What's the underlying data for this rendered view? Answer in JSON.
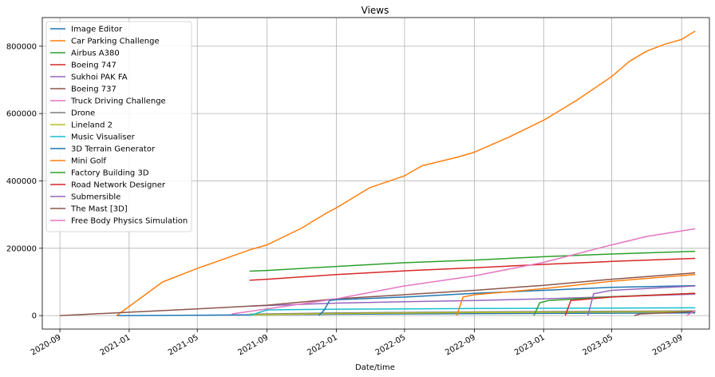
{
  "chart_data": {
    "type": "line",
    "title": "Views",
    "xlabel": "Date/time",
    "ylabel": "",
    "xlim": [
      "2020-08-01",
      "2023-10-20"
    ],
    "ylim": [
      -40000,
      885000
    ],
    "x_ticks": [
      "2020-09",
      "2021-01",
      "2021-05",
      "2021-09",
      "2022-01",
      "2022-05",
      "2022-09",
      "2023-01",
      "2023-05",
      "2023-09"
    ],
    "y_ticks": [
      0,
      200000,
      400000,
      600000,
      800000
    ],
    "grid": true,
    "legend_position": "top-left",
    "series": [
      {
        "name": "Image Editor",
        "color": "#1f77b4",
        "points": [
          [
            "2020-12-10",
            200
          ],
          [
            "2021-06-01",
            1500
          ],
          [
            "2022-01-01",
            4000
          ],
          [
            "2022-09-01",
            6000
          ],
          [
            "2023-09-25",
            8000
          ]
        ]
      },
      {
        "name": "Car Parking Challenge",
        "color": "#ff7f0e",
        "points": [
          [
            "2020-12-10",
            0
          ],
          [
            "2021-03-01",
            100000
          ],
          [
            "2021-05-01",
            140000
          ],
          [
            "2021-08-01",
            195000
          ],
          [
            "2021-09-01",
            210000
          ],
          [
            "2021-11-01",
            260000
          ],
          [
            "2021-12-15",
            305000
          ],
          [
            "2022-01-01",
            320000
          ],
          [
            "2022-03-01",
            380000
          ],
          [
            "2022-05-01",
            415000
          ],
          [
            "2022-06-01",
            445000
          ],
          [
            "2022-08-01",
            470000
          ],
          [
            "2022-09-01",
            485000
          ],
          [
            "2022-11-01",
            530000
          ],
          [
            "2023-01-01",
            580000
          ],
          [
            "2023-03-01",
            640000
          ],
          [
            "2023-05-01",
            710000
          ],
          [
            "2023-06-01",
            755000
          ],
          [
            "2023-07-01",
            785000
          ],
          [
            "2023-08-01",
            805000
          ],
          [
            "2023-09-01",
            820000
          ],
          [
            "2023-09-25",
            845000
          ]
        ]
      },
      {
        "name": "Airbus A380",
        "color": "#2ca02c",
        "points": [
          [
            "2021-08-01",
            132000
          ],
          [
            "2021-09-01",
            134000
          ],
          [
            "2022-01-01",
            146000
          ],
          [
            "2022-05-01",
            157000
          ],
          [
            "2022-09-01",
            165000
          ],
          [
            "2023-01-01",
            175000
          ],
          [
            "2023-05-01",
            183000
          ],
          [
            "2023-09-25",
            191000
          ]
        ]
      },
      {
        "name": "Boeing 747",
        "color": "#d62728",
        "points": [
          [
            "2021-08-01",
            105000
          ],
          [
            "2021-09-01",
            108000
          ],
          [
            "2022-01-01",
            122000
          ],
          [
            "2022-05-01",
            133000
          ],
          [
            "2022-09-01",
            142000
          ],
          [
            "2023-01-01",
            152000
          ],
          [
            "2023-05-01",
            161000
          ],
          [
            "2023-09-25",
            170000
          ]
        ]
      },
      {
        "name": "Sukhoi PAK FA",
        "color": "#9467bd",
        "points": [
          [
            "2021-08-01",
            28000
          ],
          [
            "2021-09-01",
            30000
          ],
          [
            "2022-01-01",
            37000
          ],
          [
            "2022-05-01",
            41000
          ],
          [
            "2022-09-01",
            45000
          ],
          [
            "2023-01-01",
            50000
          ],
          [
            "2023-05-01",
            56000
          ],
          [
            "2023-09-25",
            64000
          ]
        ]
      },
      {
        "name": "Boeing 737",
        "color": "#8c564b",
        "points": [
          [
            "2020-09-01",
            0
          ],
          [
            "2021-01-01",
            10000
          ],
          [
            "2021-05-01",
            20000
          ],
          [
            "2021-09-01",
            31000
          ],
          [
            "2022-01-01",
            50000
          ],
          [
            "2022-05-01",
            62000
          ],
          [
            "2022-09-01",
            75000
          ],
          [
            "2023-01-01",
            90000
          ],
          [
            "2023-05-01",
            108000
          ],
          [
            "2023-09-25",
            127000
          ]
        ]
      },
      {
        "name": "Truck Driving Challenge",
        "color": "#e377c2",
        "points": [
          [
            "2021-07-01",
            5000
          ],
          [
            "2021-09-01",
            20000
          ],
          [
            "2022-01-01",
            50000
          ],
          [
            "2022-05-01",
            88000
          ],
          [
            "2022-09-01",
            118000
          ],
          [
            "2023-01-01",
            158000
          ],
          [
            "2023-05-01",
            210000
          ],
          [
            "2023-07-01",
            235000
          ],
          [
            "2023-09-25",
            258000
          ]
        ]
      },
      {
        "name": "Drone",
        "color": "#7f7f7f",
        "points": [
          [
            "2021-08-01",
            4000
          ],
          [
            "2022-01-01",
            8000
          ],
          [
            "2022-09-01",
            11000
          ],
          [
            "2023-09-25",
            14000
          ]
        ]
      },
      {
        "name": "Lineland 2",
        "color": "#bcbd22",
        "points": [
          [
            "2021-08-01",
            2000
          ],
          [
            "2022-01-01",
            6000
          ],
          [
            "2022-09-01",
            9000
          ],
          [
            "2023-09-25",
            12000
          ]
        ]
      },
      {
        "name": "Music Visualiser",
        "color": "#17becf",
        "points": [
          [
            "2021-08-01",
            0
          ],
          [
            "2021-09-01",
            17000
          ],
          [
            "2022-01-01",
            19000
          ],
          [
            "2022-09-01",
            21000
          ],
          [
            "2023-09-25",
            23000
          ]
        ]
      },
      {
        "name": "3D Terrain Generator",
        "color": "#1f77b4",
        "points": [
          [
            "2021-12-01",
            0
          ],
          [
            "2021-12-10",
            15000
          ],
          [
            "2021-12-20",
            45000
          ],
          [
            "2022-01-01",
            47000
          ],
          [
            "2022-05-01",
            55000
          ],
          [
            "2022-09-01",
            66000
          ],
          [
            "2023-01-01",
            75000
          ],
          [
            "2023-05-01",
            84000
          ],
          [
            "2023-09-25",
            89000
          ]
        ]
      },
      {
        "name": "Mini Golf",
        "color": "#ff7f0e",
        "points": [
          [
            "2022-08-01",
            0
          ],
          [
            "2022-08-12",
            55000
          ],
          [
            "2022-09-01",
            62000
          ],
          [
            "2023-01-01",
            80000
          ],
          [
            "2023-05-01",
            102000
          ],
          [
            "2023-09-25",
            122000
          ]
        ]
      },
      {
        "name": "Factory Building 3D",
        "color": "#2ca02c",
        "points": [
          [
            "2022-12-15",
            0
          ],
          [
            "2022-12-25",
            38000
          ],
          [
            "2023-01-10",
            45000
          ],
          [
            "2023-05-01",
            56000
          ],
          [
            "2023-09-25",
            66000
          ]
        ]
      },
      {
        "name": "Road Network Designer",
        "color": "#d62728",
        "points": [
          [
            "2023-02-08",
            0
          ],
          [
            "2023-02-18",
            45000
          ],
          [
            "2023-05-01",
            55000
          ],
          [
            "2023-09-25",
            66000
          ]
        ]
      },
      {
        "name": "Submersible",
        "color": "#9467bd",
        "points": [
          [
            "2023-03-20",
            0
          ],
          [
            "2023-03-30",
            65000
          ],
          [
            "2023-05-01",
            75000
          ],
          [
            "2023-09-25",
            88000
          ]
        ]
      },
      {
        "name": "The Mast [3D]",
        "color": "#8c564b",
        "points": [
          [
            "2023-06-10",
            0
          ],
          [
            "2023-06-20",
            5000
          ],
          [
            "2023-09-25",
            12000
          ]
        ]
      },
      {
        "name": "Free Body Physics Simulation",
        "color": "#e377c2",
        "points": [
          [
            "2023-09-10",
            0
          ],
          [
            "2023-09-25",
            15000
          ]
        ]
      }
    ]
  }
}
